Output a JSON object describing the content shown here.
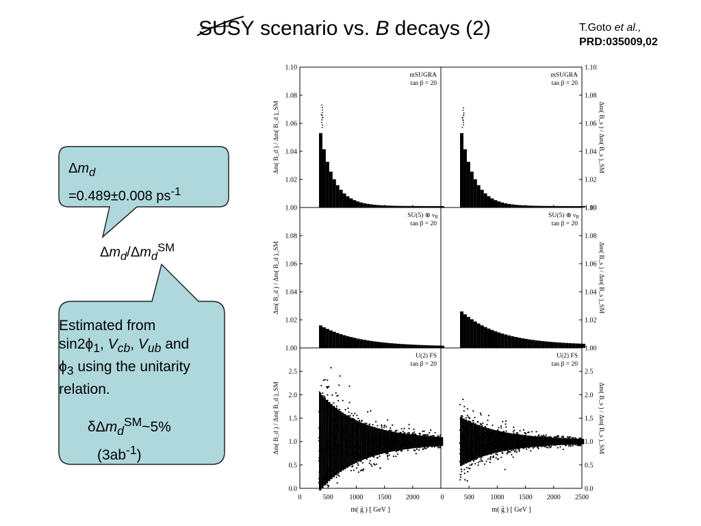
{
  "title": {
    "struck": "SUSY",
    "rest": " scenario vs. ",
    "b": "B",
    "tail": " decays (2)"
  },
  "citation": {
    "author": "T.Goto ",
    "etal": "et al.,",
    "ref": "PRD:035009,02"
  },
  "callout_top": {
    "symbol": "Δ",
    "var": "m",
    "sub": "d",
    "value_prefix": "=0.489±0.008 ps",
    "value_sup": "-1"
  },
  "ratio_label": {
    "d1": "Δ",
    "m1": "m",
    "s1": "d",
    "slash": "/",
    "d2": "Δ",
    "m2": "m",
    "s2": "d",
    "sup": "SM"
  },
  "callout_bottom": {
    "line1": "Estimated from",
    "l2a": "sin2",
    "phi": "ϕ",
    "one": "1",
    "l2b": ", ",
    "v": "V",
    "cb": "cb",
    "comma": ", ",
    "ub": "ub",
    "and": " and",
    "three": "3",
    "l3": " using the unitarity",
    "line4": "relation.",
    "delta": "δΔ",
    "m": "m",
    "d": "d",
    "sm": "SM",
    "tilde5": "~5%",
    "lum": "(3ab",
    "lumsup": "-1",
    "lumclose": ")"
  },
  "chart_data": {
    "type": "scatter",
    "grid": "3x2 panels",
    "xlabel": "m( g̃ )  [ GeV ]",
    "x_ticks": [
      "0",
      "500",
      "1000",
      "1500",
      "2000",
      "0",
      "500",
      "1000",
      "1500",
      "2000",
      "2500"
    ],
    "xlim": [
      0,
      2500
    ],
    "ylabel_left": "Δm( B_d ) / Δm( B_d )_SM",
    "ylabel_right": "Δm( B_s ) / Δm( B_s )_SM",
    "panels": [
      {
        "row": 1,
        "col": 1,
        "label": "mSUGRA",
        "tanb": "tan β = 20",
        "ylim": [
          1.0,
          1.1
        ],
        "y_ticks": [
          "1.00",
          "1.02",
          "1.04",
          "1.06",
          "1.08",
          "1.10"
        ],
        "x_start": 340,
        "peak": 1.052,
        "decay_to": 1.001,
        "outliers": [
          1.066,
          1.073
        ]
      },
      {
        "row": 1,
        "col": 2,
        "label": "mSUGRA",
        "tanb": "tan β = 20",
        "ylim": [
          1.0,
          1.1
        ],
        "y_ticks": [
          "1.00",
          "1.02",
          "1.04",
          "1.06",
          "1.08",
          "1.10"
        ],
        "x_start": 340,
        "peak": 1.052,
        "decay_to": 1.001,
        "outliers": [
          1.066,
          1.071
        ]
      },
      {
        "row": 2,
        "col": 1,
        "label": "SU(5) ⊕ ν",
        "label_sub": "R",
        "tanb": "tan β = 20",
        "ylim": [
          1.0,
          1.1
        ],
        "y_ticks": [
          "1.00",
          "1.02",
          "1.04",
          "1.06",
          "1.08"
        ],
        "x_start": 340,
        "peak": 1.015,
        "decay_to": 1.001
      },
      {
        "row": 2,
        "col": 2,
        "label": "SU(5) ⊕ ν",
        "label_sub": "R",
        "tanb": "tan β = 20",
        "ylim": [
          1.0,
          1.1
        ],
        "y_ticks": [
          "1.00",
          "1.02",
          "1.04",
          "1.06",
          "1.08",
          "1.10"
        ],
        "x_start": 340,
        "peak": 1.024,
        "decay_to": 1.002
      },
      {
        "row": 3,
        "col": 1,
        "label": "U(2) FS",
        "tanb": "tan β = 20",
        "ylim": [
          0.0,
          3.0
        ],
        "y_ticks": [
          "0.0",
          "0.5",
          "1.0",
          "1.5",
          "2.0",
          "2.5"
        ],
        "x_start": 340,
        "spread_max": 1.9,
        "spread_end": 0.08
      },
      {
        "row": 3,
        "col": 2,
        "label": "U(2) FS",
        "tanb": "tan β = 20",
        "ylim": [
          0.0,
          3.0
        ],
        "y_ticks": [
          "0.0",
          "0.5",
          "1.0",
          "1.5",
          "2.0",
          "2.5"
        ],
        "x_start": 340,
        "spread_max": 0.95,
        "spread_end": 0.06
      }
    ]
  },
  "colors": {
    "callout_fill": "#aed8dc",
    "callout_stroke": "#222222",
    "data": "#000000"
  }
}
